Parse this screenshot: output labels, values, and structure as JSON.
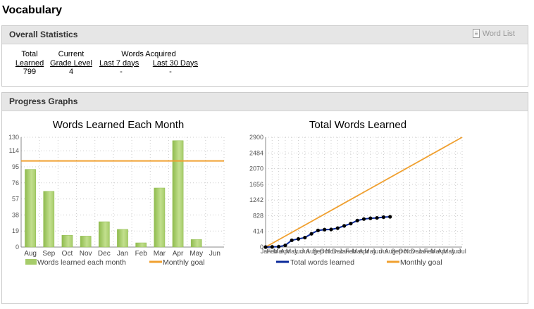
{
  "page": {
    "title": "Vocabulary"
  },
  "overall": {
    "title": "Overall Statistics",
    "word_list": "Word List",
    "total": {
      "line1": "Total",
      "line2": "Learned",
      "value": "799"
    },
    "current": {
      "line1": "Current",
      "line2": "Grade Level",
      "value": "4"
    },
    "acquired": {
      "heading": "Words Acquired",
      "last7": "Last 7 days",
      "last30": "Last 30 Days",
      "v7": "-",
      "v30": "-"
    }
  },
  "progress": {
    "title": "Progress Graphs"
  },
  "colors": {
    "bar": "#a6cc6a",
    "goal": "#f0a030",
    "total": "#0b2a9a",
    "grid": "#cccccc"
  },
  "chart_data": [
    {
      "type": "bar",
      "title": "Words Learned Each Month",
      "categories": [
        "Aug",
        "Sep",
        "Oct",
        "Nov",
        "Dec",
        "Jan",
        "Feb",
        "Mar",
        "Apr",
        "May",
        "Jun"
      ],
      "series": [
        {
          "name": "Words learned each month",
          "values": [
            92,
            66,
            14,
            13,
            30,
            21,
            5,
            70,
            126,
            9,
            0
          ]
        },
        {
          "name": "Monthly goal",
          "type": "line",
          "values": [
            102,
            102,
            102,
            102,
            102,
            102,
            102,
            102,
            102,
            102,
            102
          ]
        }
      ],
      "yticks": [
        "130",
        "114",
        "95",
        "76",
        "57",
        "38",
        "19",
        "0"
      ],
      "ylim": [
        0,
        130
      ],
      "legend": "bottom",
      "grid": true
    },
    {
      "type": "line",
      "title": "Total Words Learned",
      "x_labels": [
        "Jan",
        "Feb",
        "Mar",
        "Apr",
        "May",
        "Jun",
        "Jul",
        "Aug",
        "Sep",
        "Oct",
        "Nov",
        "Dec",
        "Jan",
        "Feb",
        "Mar",
        "Apr",
        "May",
        "Jun",
        "Jul",
        "Aug",
        "Sep",
        "Oct",
        "Nov",
        "Dec",
        "Jan",
        "Feb",
        "Mar",
        "Apr",
        "May",
        "Jun",
        "Jul"
      ],
      "series": [
        {
          "name": "Total words learned",
          "values": [
            0,
            5,
            10,
            45,
            180,
            215,
            250,
            350,
            440,
            460,
            465,
            500,
            560,
            620,
            700,
            740,
            760,
            770,
            790,
            799
          ]
        },
        {
          "name": "Monthly goal",
          "values": [
            0,
            2900
          ],
          "x_index": [
            0,
            30
          ]
        }
      ],
      "yticks": [
        "2900",
        "2484",
        "2070",
        "1656",
        "1242",
        "828",
        "414",
        "0"
      ],
      "ylim": [
        0,
        2900
      ],
      "legend": "bottom",
      "grid": true
    }
  ]
}
